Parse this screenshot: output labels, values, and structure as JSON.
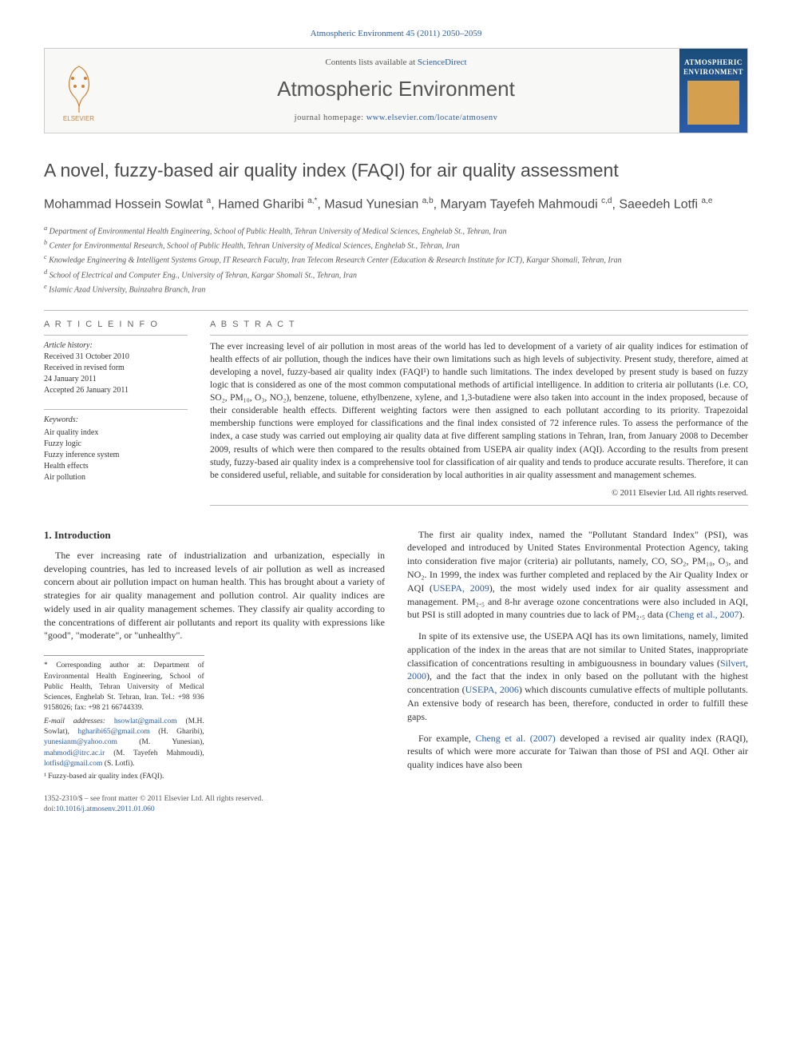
{
  "header": {
    "citation": "Atmospheric Environment 45 (2011) 2050–2059",
    "contents_prefix": "Contents lists available at ",
    "contents_link": "ScienceDirect",
    "journal": "Atmospheric Environment",
    "homepage_prefix": "journal homepage: ",
    "homepage_url": "www.elsevier.com/locate/atmosenv",
    "publisher_logo_label": "ELSEVIER",
    "cover_label": "ATMOSPHERIC ENVIRONMENT"
  },
  "article": {
    "title": "A novel, fuzzy-based air quality index (FAQI) for air quality assessment",
    "authors_html": "Mohammad Hossein Sowlat <sup>a</sup>, Hamed Gharibi <sup>a,*</sup>, Masud Yunesian <sup>a,b</sup>, Maryam Tayefeh Mahmoudi <sup>c,d</sup>, Saeedeh Lotfi <sup>a,e</sup>",
    "affiliations": [
      "a Department of Environmental Health Engineering, School of Public Health, Tehran University of Medical Sciences, Enghelab St., Tehran, Iran",
      "b Center for Environmental Research, School of Public Health, Tehran University of Medical Sciences, Enghelab St., Tehran, Iran",
      "c Knowledge Engineering & Intelligent Systems Group, IT Research Faculty, Iran Telecom Research Center (Education & Research Institute for ICT), Kargar Shomali, Tehran, Iran",
      "d School of Electrical and Computer Eng., University of Tehran, Kargar Shomali St., Tehran, Iran",
      "e Islamic Azad University, Buinzahra Branch, Iran"
    ]
  },
  "info": {
    "heading": "A R T I C L E   I N F O",
    "history_label": "Article history:",
    "history": [
      "Received 31 October 2010",
      "Received in revised form",
      "24 January 2011",
      "Accepted 26 January 2011"
    ],
    "keywords_label": "Keywords:",
    "keywords": [
      "Air quality index",
      "Fuzzy logic",
      "Fuzzy inference system",
      "Health effects",
      "Air pollution"
    ]
  },
  "abstract": {
    "heading": "A B S T R A C T",
    "text": "The ever increasing level of air pollution in most areas of the world has led to development of a variety of air quality indices for estimation of health effects of air pollution, though the indices have their own limitations such as high levels of subjectivity. Present study, therefore, aimed at developing a novel, fuzzy-based air quality index (FAQI¹) to handle such limitations. The index developed by present study is based on fuzzy logic that is considered as one of the most common computational methods of artificial intelligence. In addition to criteria air pollutants (i.e. CO, SO₂, PM₁₀, O₃, NO₂), benzene, toluene, ethylbenzene, xylene, and 1,3-butadiene were also taken into account in the index proposed, because of their considerable health effects. Different weighting factors were then assigned to each pollutant according to its priority. Trapezoidal membership functions were employed for classifications and the final index consisted of 72 inference rules. To assess the performance of the index, a case study was carried out employing air quality data at five different sampling stations in Tehran, Iran, from January 2008 to December 2009, results of which were then compared to the results obtained from USEPA air quality index (AQI). According to the results from present study, fuzzy-based air quality index is a comprehensive tool for classification of air quality and tends to produce accurate results. Therefore, it can be considered useful, reliable, and suitable for consideration by local authorities in air quality assessment and management schemes.",
    "copyright": "© 2011 Elsevier Ltd. All rights reserved."
  },
  "body": {
    "section_number": "1.",
    "section_title": "Introduction",
    "p1": "The ever increasing rate of industrialization and urbanization, especially in developing countries, has led to increased levels of air pollution as well as increased concern about air pollution impact on human health. This has brought about a variety of strategies for air quality management and pollution control. Air quality indices are widely used in air quality management schemes. They classify air quality according to the concentrations of different air pollutants and report its quality with expressions like \"good\", \"moderate\", or \"unhealthy\".",
    "p2_a": "The first air quality index, named the \"Pollutant Standard Index\" (PSI), was developed and introduced by United States Environmental Protection Agency, taking into consideration five major (criteria) air pollutants, namely, CO, SO₂, PM₁₀, O₃, and NO₂. In 1999, the index was further completed and replaced by the Air Quality Index or AQI (",
    "p2_cite1": "USEPA, 2009",
    "p2_b": "), the most widely used index for air quality assessment and management. PM₂.₅ and 8-hr average ozone concentrations were also included in AQI, but PSI is still adopted in many countries due to lack of PM₂.₅ data (",
    "p2_cite2": "Cheng et al., 2007",
    "p2_c": ").",
    "p3_a": "In spite of its extensive use, the USEPA AQI has its own limitations, namely, limited application of the index in the areas that are not similar to United States, inappropriate classification of concentrations resulting in ambiguousness in boundary values (",
    "p3_cite1": "Silvert, 2000",
    "p3_b": "), and the fact that the index in only based on the pollutant with the highest concentration (",
    "p3_cite2": "USEPA, 2006",
    "p3_c": ") which discounts cumulative effects of multiple pollutants. An extensive body of research has been, therefore, conducted in order to fulfill these gaps.",
    "p4_a": "For example, ",
    "p4_cite1": "Cheng et al. (2007)",
    "p4_b": " developed a revised air quality index (RAQI), results of which were more accurate for Taiwan than those of PSI and AQI. Other air quality indices have also been"
  },
  "footnotes": {
    "corr_label": "* Corresponding author at: Department of Environmental Health Engineering, School of Public Health, Tehran University of Medical Sciences, Enghelab St. Tehran, Iran. Tel.: +98 936 9158026; fax: +98 21 66744339.",
    "email_label": "E-mail addresses:",
    "emails": [
      {
        "addr": "hsowlat@gmail.com",
        "who": "(M.H. Sowlat),"
      },
      {
        "addr": "hgharibi65@gmail.com",
        "who": "(H. Gharibi),"
      },
      {
        "addr": "yunesianm@yahoo.com",
        "who": "(M. Yunesian),"
      },
      {
        "addr": "mahmodi@itrc.ac.ir",
        "who": "(M. Tayefeh Mahmoudi),"
      },
      {
        "addr": "lotfisd@gmail.com",
        "who": "(S. Lotfi)."
      }
    ],
    "note1": "¹ Fuzzy-based air quality index (FAQI)."
  },
  "footer": {
    "issn_line": "1352-2310/$ – see front matter © 2011 Elsevier Ltd. All rights reserved.",
    "doi_prefix": "doi:",
    "doi": "10.1016/j.atmosenv.2011.01.060"
  },
  "colors": {
    "link": "#2a5caa",
    "text": "#333333",
    "rule": "#bbbbbb"
  }
}
